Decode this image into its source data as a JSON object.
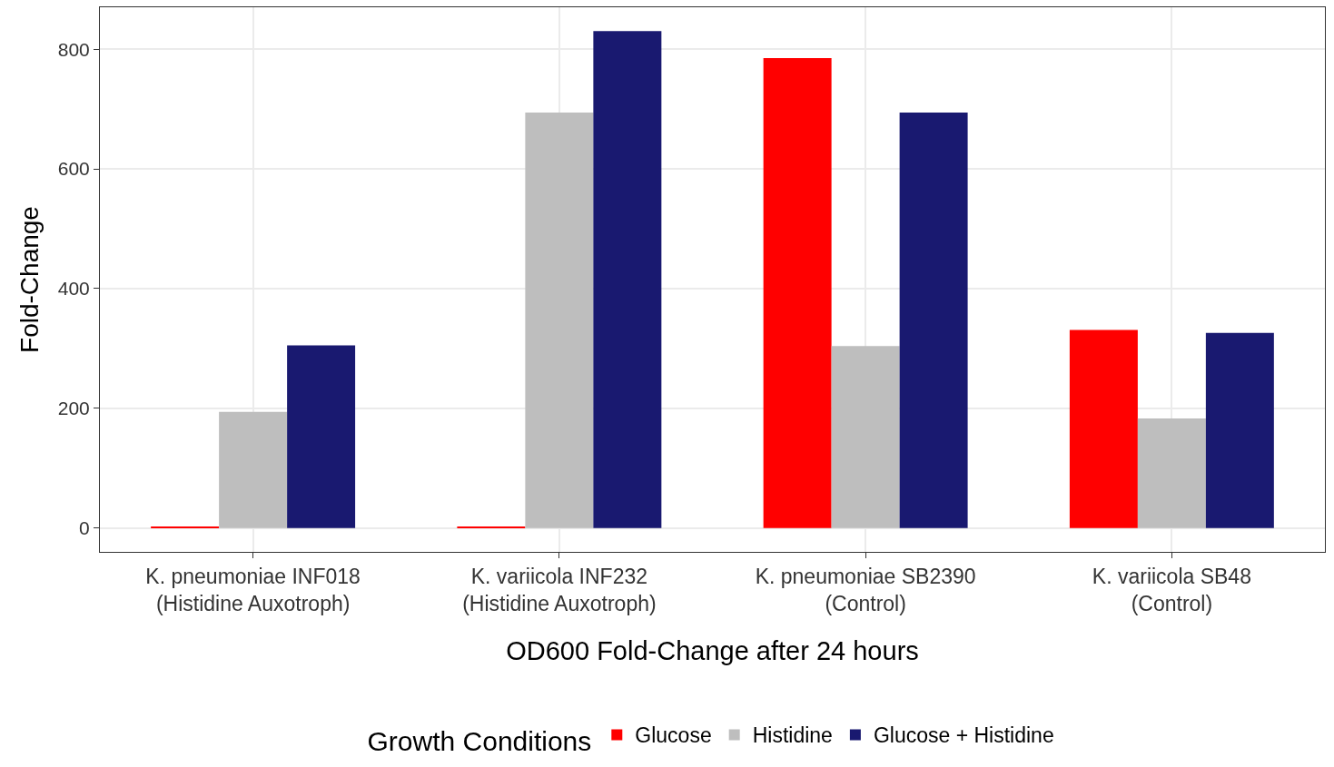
{
  "chart_data": {
    "type": "bar",
    "categories": [
      "K. pneumoniae INF018\n(Histidine Auxotroph)",
      "K. variicola INF232\n(Histidine Auxotroph)",
      "K. pneumoniae SB2390\n(Control)",
      "K. variicola SB48\n(Control)"
    ],
    "series": [
      {
        "name": "Glucose",
        "color": "#ff0000",
        "values": [
          1,
          1,
          785,
          331
        ]
      },
      {
        "name": "Histidine",
        "color": "#bebebe",
        "values": [
          194,
          694,
          304,
          183
        ]
      },
      {
        "name": "Glucose + Histidine",
        "color": "#191970",
        "values": [
          305,
          830,
          694,
          326
        ]
      }
    ],
    "xlabel": "OD600 Fold-Change after 24 hours",
    "ylabel": "Fold-Change",
    "legend_title": "Growth Conditions",
    "ylim": [
      -40,
      870
    ],
    "yticks": [
      0,
      200,
      400,
      600,
      800
    ],
    "grid": true,
    "legend": "bottom"
  }
}
